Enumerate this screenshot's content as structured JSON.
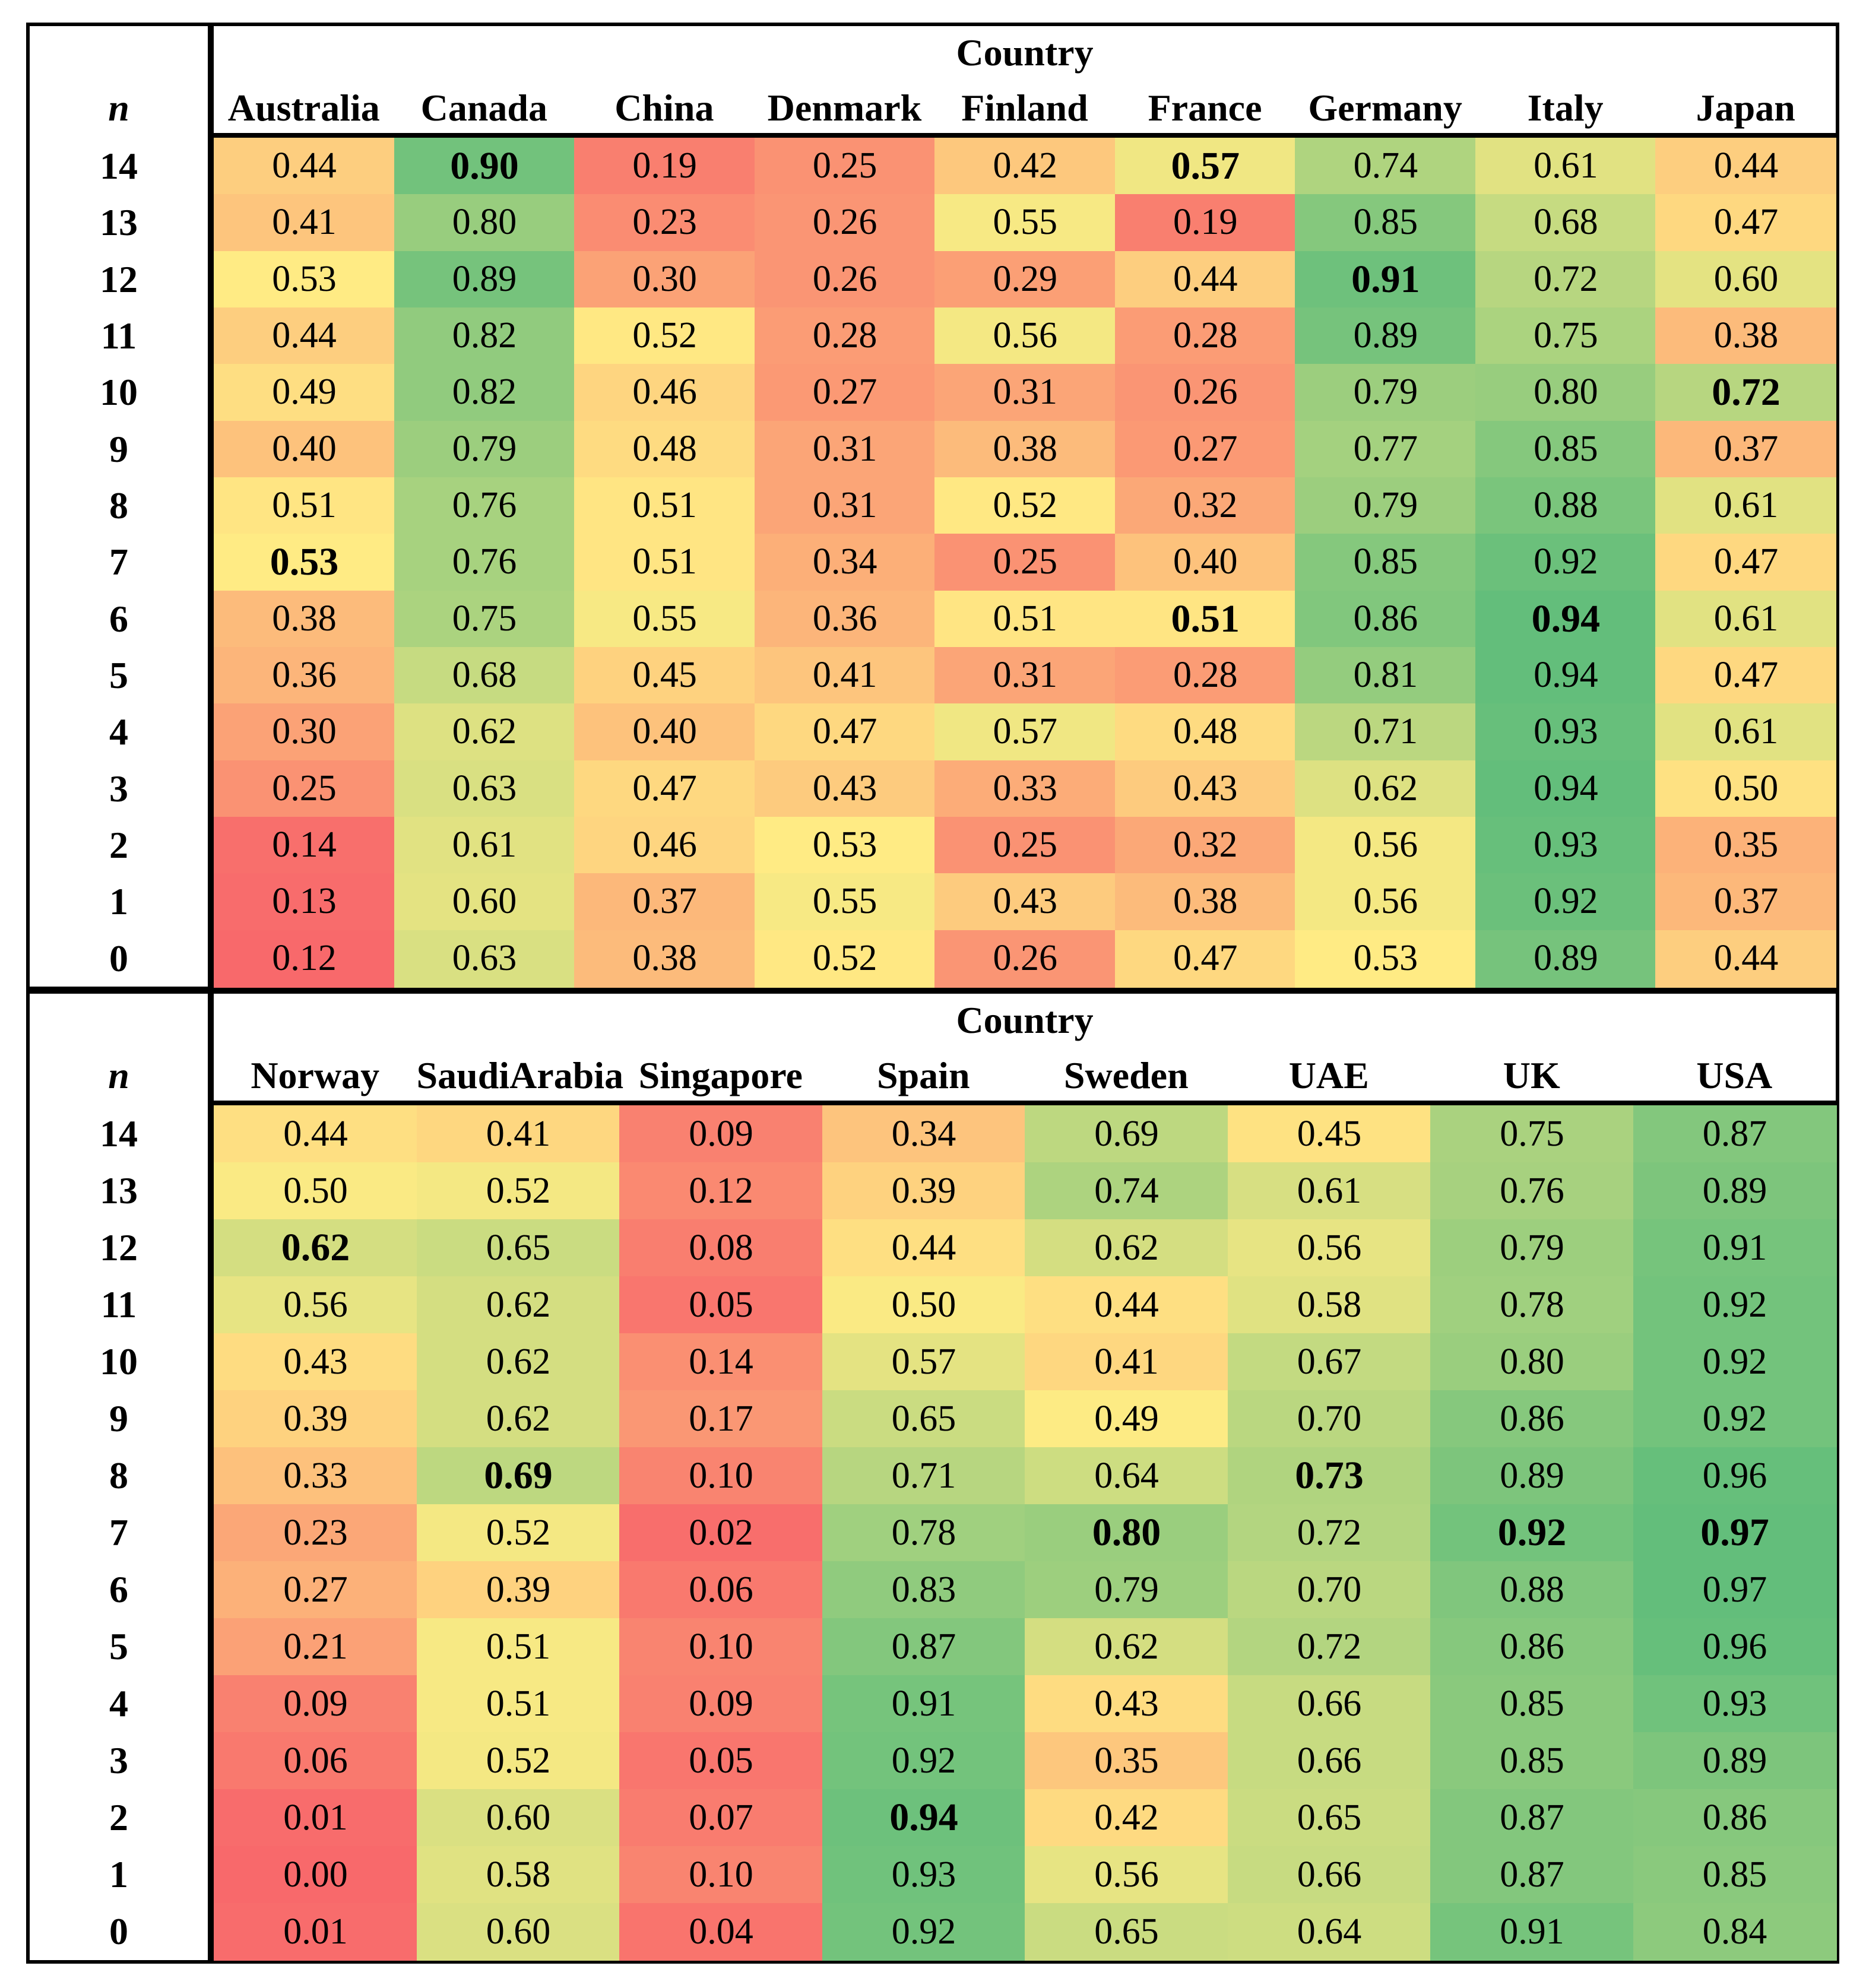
{
  "chart_data": [
    {
      "type": "heatmap",
      "title": "Country",
      "row_axis_label": "n",
      "rows": [
        "14",
        "13",
        "12",
        "11",
        "10",
        "9",
        "8",
        "7",
        "6",
        "5",
        "4",
        "3",
        "2",
        "1",
        "0"
      ],
      "columns": [
        "Australia",
        "Canada",
        "China",
        "Denmark",
        "Finland",
        "France",
        "Germany",
        "Italy",
        "Japan"
      ],
      "values": [
        [
          "0.44",
          "0.90",
          "0.19",
          "0.25",
          "0.42",
          "0.57",
          "0.74",
          "0.61",
          "0.44"
        ],
        [
          "0.41",
          "0.80",
          "0.23",
          "0.26",
          "0.55",
          "0.19",
          "0.85",
          "0.68",
          "0.47"
        ],
        [
          "0.53",
          "0.89",
          "0.30",
          "0.26",
          "0.29",
          "0.44",
          "0.91",
          "0.72",
          "0.60"
        ],
        [
          "0.44",
          "0.82",
          "0.52",
          "0.28",
          "0.56",
          "0.28",
          "0.89",
          "0.75",
          "0.38"
        ],
        [
          "0.49",
          "0.82",
          "0.46",
          "0.27",
          "0.31",
          "0.26",
          "0.79",
          "0.80",
          "0.72"
        ],
        [
          "0.40",
          "0.79",
          "0.48",
          "0.31",
          "0.38",
          "0.27",
          "0.77",
          "0.85",
          "0.37"
        ],
        [
          "0.51",
          "0.76",
          "0.51",
          "0.31",
          "0.52",
          "0.32",
          "0.79",
          "0.88",
          "0.61"
        ],
        [
          "0.53",
          "0.76",
          "0.51",
          "0.34",
          "0.25",
          "0.40",
          "0.85",
          "0.92",
          "0.47"
        ],
        [
          "0.38",
          "0.75",
          "0.55",
          "0.36",
          "0.51",
          "0.51",
          "0.86",
          "0.94",
          "0.61"
        ],
        [
          "0.36",
          "0.68",
          "0.45",
          "0.41",
          "0.31",
          "0.28",
          "0.81",
          "0.94",
          "0.47"
        ],
        [
          "0.30",
          "0.62",
          "0.40",
          "0.47",
          "0.57",
          "0.48",
          "0.71",
          "0.93",
          "0.61"
        ],
        [
          "0.25",
          "0.63",
          "0.47",
          "0.43",
          "0.33",
          "0.43",
          "0.62",
          "0.94",
          "0.50"
        ],
        [
          "0.14",
          "0.61",
          "0.46",
          "0.53",
          "0.25",
          "0.32",
          "0.56",
          "0.93",
          "0.35"
        ],
        [
          "0.13",
          "0.60",
          "0.37",
          "0.55",
          "0.43",
          "0.38",
          "0.56",
          "0.92",
          "0.37"
        ],
        [
          "0.12",
          "0.63",
          "0.38",
          "0.52",
          "0.26",
          "0.47",
          "0.53",
          "0.89",
          "0.44"
        ]
      ],
      "bold_cells": [
        [
          7,
          0
        ],
        [
          0,
          1
        ],
        [
          0,
          5
        ],
        [
          8,
          5
        ],
        [
          2,
          6
        ],
        [
          8,
          7
        ],
        [
          4,
          8
        ]
      ]
    },
    {
      "type": "heatmap",
      "title": "Country",
      "row_axis_label": "n",
      "rows": [
        "14",
        "13",
        "12",
        "11",
        "10",
        "9",
        "8",
        "7",
        "6",
        "5",
        "4",
        "3",
        "2",
        "1",
        "0"
      ],
      "columns": [
        "Norway",
        "SaudiArabia",
        "Singapore",
        "Spain",
        "Sweden",
        "UAE",
        "UK",
        "USA"
      ],
      "values": [
        [
          "0.44",
          "0.41",
          "0.09",
          "0.34",
          "0.69",
          "0.45",
          "0.75",
          "0.87"
        ],
        [
          "0.50",
          "0.52",
          "0.12",
          "0.39",
          "0.74",
          "0.61",
          "0.76",
          "0.89"
        ],
        [
          "0.62",
          "0.65",
          "0.08",
          "0.44",
          "0.62",
          "0.56",
          "0.79",
          "0.91"
        ],
        [
          "0.56",
          "0.62",
          "0.05",
          "0.50",
          "0.44",
          "0.58",
          "0.78",
          "0.92"
        ],
        [
          "0.43",
          "0.62",
          "0.14",
          "0.57",
          "0.41",
          "0.67",
          "0.80",
          "0.92"
        ],
        [
          "0.39",
          "0.62",
          "0.17",
          "0.65",
          "0.49",
          "0.70",
          "0.86",
          "0.92"
        ],
        [
          "0.33",
          "0.69",
          "0.10",
          "0.71",
          "0.64",
          "0.73",
          "0.89",
          "0.96"
        ],
        [
          "0.23",
          "0.52",
          "0.02",
          "0.78",
          "0.80",
          "0.72",
          "0.92",
          "0.97"
        ],
        [
          "0.27",
          "0.39",
          "0.06",
          "0.83",
          "0.79",
          "0.70",
          "0.88",
          "0.97"
        ],
        [
          "0.21",
          "0.51",
          "0.10",
          "0.87",
          "0.62",
          "0.72",
          "0.86",
          "0.96"
        ],
        [
          "0.09",
          "0.51",
          "0.09",
          "0.91",
          "0.43",
          "0.66",
          "0.85",
          "0.93"
        ],
        [
          "0.06",
          "0.52",
          "0.05",
          "0.92",
          "0.35",
          "0.66",
          "0.85",
          "0.89"
        ],
        [
          "0.01",
          "0.60",
          "0.07",
          "0.94",
          "0.42",
          "0.65",
          "0.87",
          "0.86"
        ],
        [
          "0.00",
          "0.58",
          "0.10",
          "0.93",
          "0.56",
          "0.66",
          "0.87",
          "0.85"
        ],
        [
          "0.01",
          "0.60",
          "0.04",
          "0.92",
          "0.65",
          "0.64",
          "0.91",
          "0.84"
        ]
      ],
      "bold_cells": [
        [
          2,
          0
        ],
        [
          6,
          1
        ],
        [
          12,
          3
        ],
        [
          7,
          4
        ],
        [
          6,
          5
        ],
        [
          7,
          6
        ],
        [
          7,
          7
        ]
      ]
    }
  ],
  "colors": {
    "low": "#f8696b",
    "mid": "#ffeb84",
    "high": "#63be7b"
  }
}
